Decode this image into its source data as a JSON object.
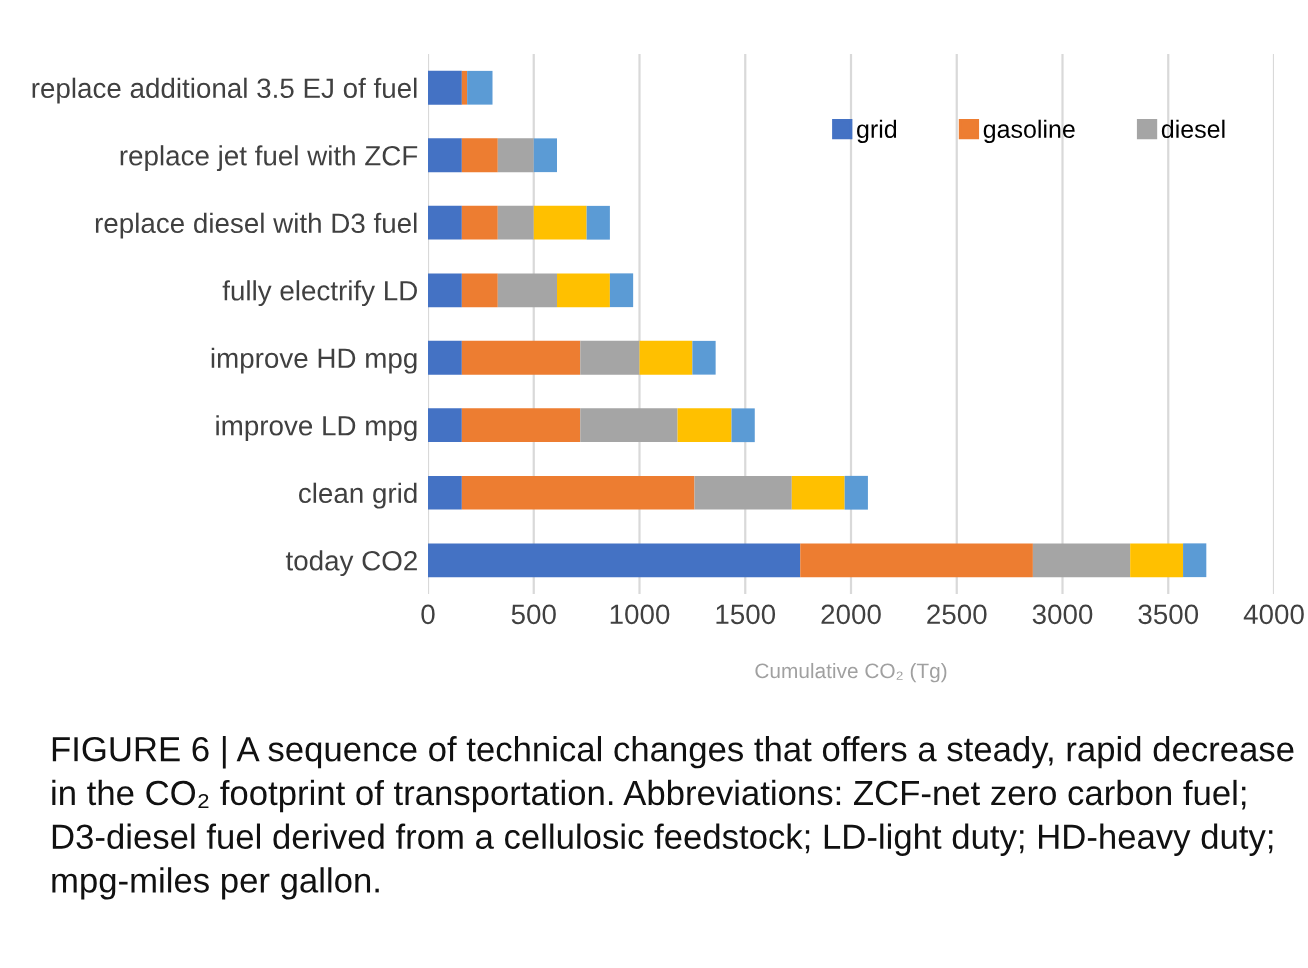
{
  "chart_data": {
    "type": "bar",
    "orientation": "horizontal",
    "stacked": true,
    "categories": [
      "replace additional 3.5 EJ of fuel",
      "replace jet fuel with ZCF",
      "replace diesel with D3 fuel",
      "fully electrify LD",
      "improve HD mpg",
      "improve LD mpg",
      "clean grid",
      "today CO2"
    ],
    "series": [
      {
        "name": "grid",
        "color": "#4472c4",
        "values": [
          160,
          160,
          160,
          160,
          160,
          160,
          160,
          1760
        ]
      },
      {
        "name": "gasoline",
        "color": "#ed7d31",
        "values": [
          25,
          170,
          170,
          170,
          560,
          560,
          1100,
          1100
        ]
      },
      {
        "name": "diesel",
        "color": "#a5a5a5",
        "values": [
          0,
          170,
          170,
          280,
          280,
          460,
          460,
          460
        ]
      },
      {
        "color": "#ffc000",
        "values": [
          0,
          0,
          250,
          250,
          250,
          255,
          250,
          250
        ]
      },
      {
        "color": "#5b9bd5",
        "values": [
          120,
          110,
          110,
          110,
          110,
          110,
          110,
          110
        ]
      }
    ],
    "xlim": [
      0,
      4000
    ],
    "xticks": [
      0,
      500,
      1000,
      1500,
      2000,
      2500,
      3000,
      3500,
      4000
    ],
    "xlabel": "Cumulative CO₂ (Tg)",
    "grid": "x",
    "legend": "top right",
    "annotations": [
      "FIGURE 6 | A sequence of technical changes that offers a steady, rapid decrease in the CO₂ footprint of transportation. Abbreviations: ZCF-net zero carbon fuel; D3-diesel fuel derived from a cellulosic feedstock; LD-light duty; HD-heavy duty; mpg-miles per gallon."
    ]
  }
}
